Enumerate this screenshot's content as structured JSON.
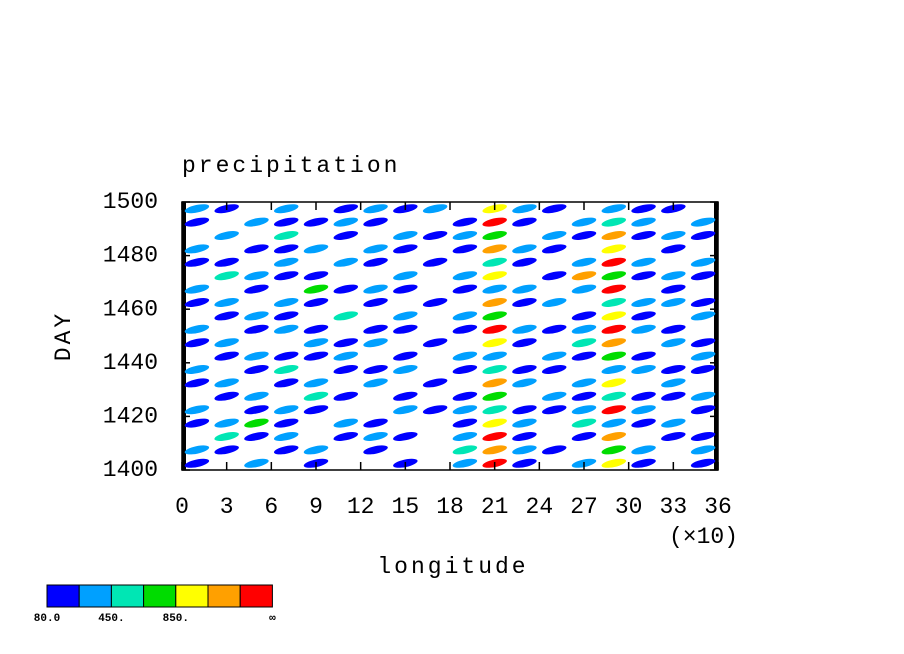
{
  "chart_data": {
    "type": "contour",
    "title": "precipitation",
    "x_label": "longitude",
    "y_label": "DAY",
    "x_scale_note": "(×10)",
    "xlim": [
      0,
      36
    ],
    "xticks": [
      0,
      3,
      6,
      9,
      12,
      15,
      18,
      21,
      24,
      27,
      30,
      33,
      36
    ],
    "ylim": [
      1400,
      1500
    ],
    "yticks": [
      1400,
      1420,
      1440,
      1460,
      1480,
      1500
    ],
    "x": [
      1,
      3,
      5,
      7,
      9,
      11,
      13,
      15,
      17,
      19,
      21,
      23,
      25,
      27,
      29,
      31,
      33,
      35
    ],
    "y": [
      1402.5,
      1407.5,
      1412.5,
      1417.5,
      1422.5,
      1427.5,
      1432.5,
      1437.5,
      1442.5,
      1447.5,
      1452.5,
      1457.5,
      1462.5,
      1467.5,
      1472.5,
      1477.5,
      1482.5,
      1487.5,
      1492.5,
      1497.5
    ],
    "z": [
      [
        120,
        0,
        300,
        0,
        120,
        0,
        0,
        120,
        0,
        300,
        1300,
        120,
        0,
        300,
        900,
        120,
        0,
        120
      ],
      [
        300,
        120,
        0,
        120,
        300,
        0,
        120,
        0,
        0,
        500,
        1100,
        300,
        120,
        0,
        700,
        300,
        0,
        300
      ],
      [
        0,
        500,
        120,
        300,
        0,
        120,
        300,
        120,
        0,
        300,
        1300,
        120,
        0,
        120,
        1100,
        0,
        120,
        120
      ],
      [
        120,
        300,
        700,
        120,
        0,
        300,
        120,
        0,
        0,
        120,
        900,
        300,
        0,
        500,
        300,
        120,
        300,
        0
      ],
      [
        300,
        0,
        120,
        300,
        120,
        0,
        0,
        300,
        120,
        300,
        500,
        120,
        120,
        300,
        1300,
        300,
        0,
        120
      ],
      [
        0,
        120,
        300,
        0,
        500,
        120,
        0,
        120,
        0,
        120,
        700,
        0,
        300,
        120,
        500,
        120,
        120,
        300
      ],
      [
        120,
        300,
        0,
        120,
        300,
        0,
        300,
        0,
        120,
        0,
        1100,
        300,
        0,
        300,
        900,
        0,
        300,
        0
      ],
      [
        300,
        0,
        120,
        500,
        0,
        120,
        120,
        300,
        0,
        120,
        500,
        120,
        120,
        0,
        300,
        300,
        120,
        120
      ],
      [
        0,
        120,
        300,
        120,
        120,
        300,
        0,
        120,
        0,
        300,
        300,
        0,
        300,
        120,
        700,
        120,
        0,
        300
      ],
      [
        120,
        300,
        0,
        0,
        300,
        120,
        300,
        0,
        120,
        0,
        900,
        120,
        0,
        500,
        1100,
        0,
        300,
        120
      ],
      [
        300,
        0,
        120,
        300,
        120,
        0,
        120,
        120,
        0,
        120,
        1300,
        300,
        120,
        300,
        1300,
        300,
        120,
        0
      ],
      [
        0,
        120,
        300,
        120,
        0,
        500,
        0,
        300,
        0,
        300,
        700,
        0,
        0,
        120,
        900,
        120,
        0,
        300
      ],
      [
        120,
        300,
        0,
        300,
        120,
        0,
        120,
        0,
        120,
        0,
        1100,
        120,
        300,
        0,
        500,
        300,
        300,
        120
      ],
      [
        300,
        0,
        120,
        0,
        700,
        120,
        300,
        120,
        0,
        120,
        300,
        300,
        0,
        300,
        1300,
        0,
        120,
        0
      ],
      [
        0,
        500,
        300,
        120,
        120,
        0,
        0,
        300,
        0,
        300,
        900,
        0,
        120,
        1100,
        700,
        120,
        300,
        120
      ],
      [
        120,
        120,
        0,
        300,
        0,
        300,
        120,
        0,
        120,
        0,
        500,
        120,
        0,
        300,
        1300,
        300,
        0,
        300
      ],
      [
        300,
        0,
        120,
        120,
        300,
        0,
        300,
        120,
        0,
        120,
        1100,
        300,
        120,
        0,
        900,
        0,
        120,
        0
      ],
      [
        0,
        300,
        0,
        500,
        0,
        120,
        0,
        300,
        120,
        300,
        700,
        0,
        300,
        120,
        1100,
        120,
        300,
        120
      ],
      [
        120,
        0,
        300,
        120,
        120,
        300,
        120,
        0,
        0,
        120,
        1300,
        120,
        0,
        300,
        500,
        300,
        0,
        300
      ],
      [
        300,
        120,
        0,
        300,
        0,
        120,
        300,
        120,
        300,
        0,
        900,
        300,
        120,
        0,
        300,
        120,
        120,
        0
      ]
    ],
    "color_levels": [
      80,
      265,
      450,
      650,
      850,
      1050,
      1250
    ],
    "colors": [
      "#0000ff",
      "#00a0ff",
      "#00e6b4",
      "#00dc00",
      "#ffff00",
      "#ffa000",
      "#ff0000"
    ],
    "colorbar_labels": [
      {
        "value": 80,
        "label": "80.0"
      },
      {
        "value": 450,
        "label": "450."
      },
      {
        "value": 850,
        "label": "850."
      }
    ],
    "colorbar_top_label": "∞"
  }
}
